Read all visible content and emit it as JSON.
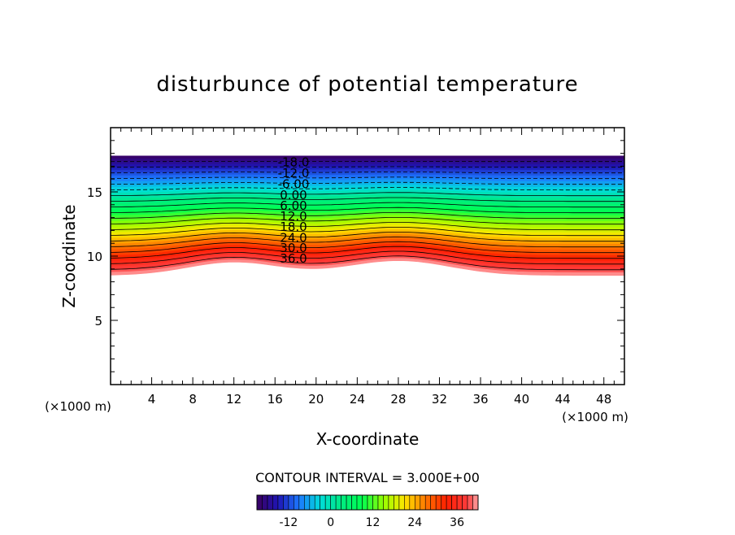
{
  "chart_data": {
    "type": "contour",
    "title": "disturbunce of potential temperature",
    "xlabel": "X-coordinate",
    "ylabel": "Z-coordinate",
    "x_unit": "(×1000 m)",
    "y_unit": "(×1000 m)",
    "xlim": [
      0,
      50
    ],
    "ylim": [
      0,
      20
    ],
    "x_ticks": [
      4,
      8,
      12,
      16,
      20,
      24,
      28,
      32,
      36,
      40,
      44,
      48
    ],
    "y_ticks": [
      5,
      10,
      15
    ],
    "contour_interval_text": "CONTOUR INTERVAL = 3.000E+00",
    "contour_interval": 3.0,
    "level_range": [
      -21,
      42
    ],
    "contour_labels": [
      "-18.0",
      "-12.0",
      "-6.00",
      "0.00",
      "6.00",
      "12.0",
      "18.0",
      "24.0",
      "30.0",
      "36.0"
    ],
    "colorbar_ticks": [
      -12,
      0,
      12,
      24,
      36
    ],
    "field_description": "layered field: values increase downward from about -21 at the top (z about 17.8 km) to about 42 at the bottom (z about 8.5 km); layers bulge upward near x = 12 and x = 28 km",
    "colors": {
      "low": "#3a0060",
      "mid": "#00ff66",
      "high": "#ff2200",
      "top_end": "#ffa0a0"
    }
  }
}
